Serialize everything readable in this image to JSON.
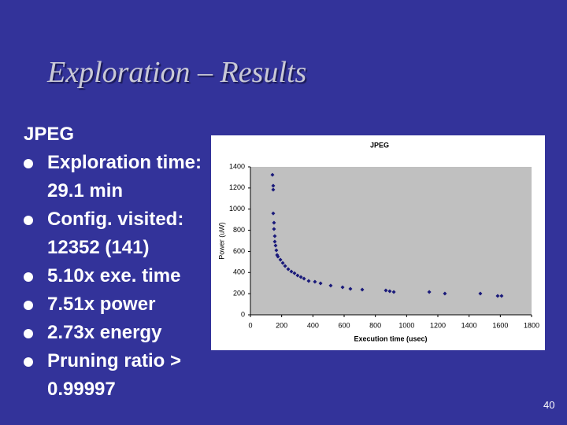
{
  "title": "Exploration – Results",
  "heading": "JPEG",
  "bullets": [
    "Exploration time: 29.1 min",
    "Config. visited: 12352 (141)",
    "5.10x exe. time",
    "7.51x power",
    "2.73x energy",
    "Pruning ratio > 0.99997"
  ],
  "page_number": "40",
  "chart_data": {
    "type": "scatter",
    "title": "JPEG",
    "x_label": "Execution time (usec)",
    "y_label": "Power (uW)",
    "color": "#1a1a7a",
    "background": "#c0c0c0",
    "x": [
      141,
      146,
      146,
      146,
      151,
      151,
      156,
      156,
      161,
      166,
      171,
      176,
      192,
      207,
      222,
      242,
      262,
      282,
      302,
      323,
      343,
      373,
      413,
      449,
      514,
      590,
      640,
      716,
      867,
      892,
      918,
      1145,
      1245,
      1472,
      1583,
      1608
    ],
    "values": [
      1325,
      1221,
      1184,
      960,
      871,
      812,
      745,
      693,
      655,
      611,
      566,
      551,
      521,
      491,
      462,
      432,
      410,
      394,
      372,
      357,
      343,
      320,
      313,
      298,
      276,
      261,
      246,
      238,
      231,
      223,
      216,
      216,
      201,
      201,
      179,
      179
    ],
    "xlim": [
      0,
      1800
    ],
    "xticks": [
      0,
      200,
      400,
      600,
      800,
      1000,
      1200,
      1400,
      1600,
      1800
    ],
    "ylim": [
      0,
      1400
    ],
    "yticks": [
      0,
      200,
      400,
      600,
      800,
      1000,
      1200,
      1400
    ]
  }
}
